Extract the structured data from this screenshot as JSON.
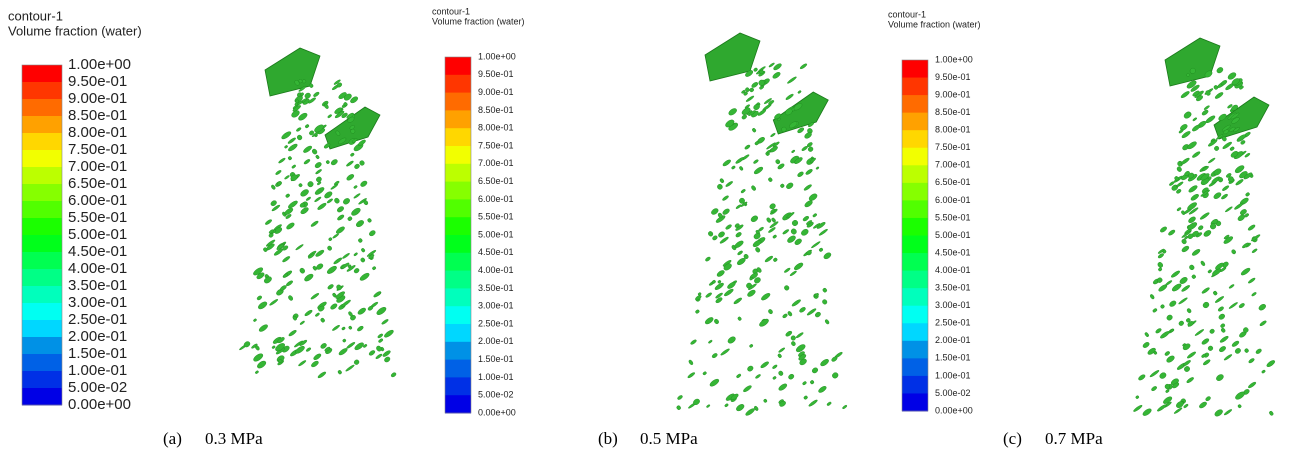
{
  "panels": [
    {
      "title": "contour-1",
      "subtitle": "Volume fraction (water)",
      "scale_labels": [
        "1.00e+00",
        "9.50e-01",
        "9.00e-01",
        "8.50e-01",
        "8.00e-01",
        "7.50e-01",
        "7.00e-01",
        "6.50e-01",
        "6.00e-01",
        "5.50e-01",
        "5.00e-01",
        "4.50e-01",
        "4.00e-01",
        "3.50e-01",
        "3.00e-01",
        "2.50e-01",
        "2.00e-01",
        "1.50e-01",
        "1.00e-01",
        "5.00e-02",
        "0.00e+00"
      ],
      "caption": {
        "label": "(a)",
        "text": "0.3 MPa"
      }
    },
    {
      "title": "contour-1",
      "subtitle": "Volume fraction (water)",
      "scale_labels": [
        "1.00e+00",
        "9.50e-01",
        "9.00e-01",
        "8.50e-01",
        "8.00e-01",
        "7.50e-01",
        "7.00e-01",
        "6.50e-01",
        "6.00e-01",
        "5.50e-01",
        "5.00e-01",
        "4.50e-01",
        "4.00e-01",
        "3.50e-01",
        "3.00e-01",
        "2.50e-01",
        "2.00e-01",
        "1.50e-01",
        "1.00e-01",
        "5.00e-02",
        "0.00e+00"
      ],
      "caption": {
        "label": "(b)",
        "text": "0.5 MPa"
      }
    },
    {
      "title": "contour-1",
      "subtitle": "Volume fraction (water)",
      "scale_labels": [
        "1.00e+00",
        "9.50e-01",
        "9.00e-01",
        "8.50e-01",
        "8.00e-01",
        "7.50e-01",
        "7.00e-01",
        "6.50e-01",
        "6.00e-01",
        "5.50e-01",
        "5.00e-01",
        "4.50e-01",
        "4.00e-01",
        "3.50e-01",
        "3.00e-01",
        "2.50e-01",
        "2.00e-01",
        "1.50e-01",
        "1.00e-01",
        "5.00e-02",
        "0.00e+00"
      ],
      "caption": {
        "label": "(c)",
        "text": "0.7 MPa"
      }
    }
  ]
}
